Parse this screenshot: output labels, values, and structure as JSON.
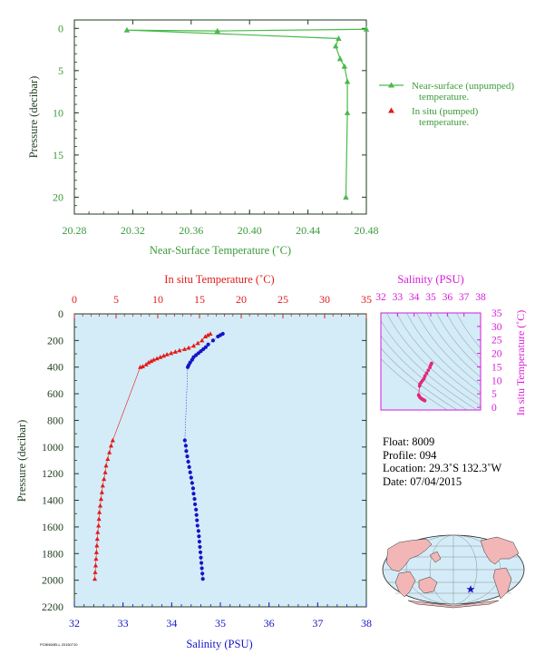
{
  "colors": {
    "green": "#4aba4a",
    "green_text": "#3a9a3a",
    "red": "#e11b1b",
    "blue": "#1414c8",
    "magenta": "#d81ad8",
    "pink": "#e0287a",
    "axis_dark": "#1f3d1f",
    "plot_bg": "#d4ecf7",
    "land": "#f2b6b6",
    "ocean": "#d4ecf7"
  },
  "info": {
    "float": "Float:  8009",
    "profile": "Profile:  094",
    "location": "Location:  29.3˚S  132.3˚W",
    "date": "Date:  07/04/2015"
  },
  "footnote": "PCBN08ELL 20150710",
  "chart_data": [
    {
      "type": "line",
      "id": "near_surface",
      "xlabel": "Near-Surface Temperature (˚C)",
      "ylabel": "Pressure (decibar)",
      "xlim": [
        20.28,
        20.48
      ],
      "ylim": [
        22,
        -1
      ],
      "xticks": [
        "20.28",
        "20.32",
        "20.36",
        "20.40",
        "20.44",
        "20.48"
      ],
      "xtick_values": [
        20.28,
        20.32,
        20.36,
        20.4,
        20.44,
        20.48
      ],
      "yticks": [
        "0",
        "5",
        "10",
        "15",
        "20"
      ],
      "ytick_values": [
        0,
        5,
        10,
        15,
        20
      ],
      "series": [
        {
          "name": "Near-surface (unpumped) temperature.",
          "x": [
            20.48,
            20.378,
            20.316,
            20.461,
            20.459,
            20.462,
            20.465,
            20.467,
            20.467,
            20.466
          ],
          "y": [
            0.1,
            0.3,
            0.2,
            1.2,
            2.1,
            3.6,
            4.5,
            6.3,
            10.0,
            20.0
          ]
        }
      ],
      "legend": [
        {
          "label": "Near-surface (unpumped)",
          "label2": "temperature."
        },
        {
          "label": "In situ (pumped)",
          "label2": "temperature."
        }
      ]
    },
    {
      "type": "scatter",
      "id": "profile",
      "title_top": "In situ Temperature (˚C)",
      "xlabel": "Salinity (PSU)",
      "ylabel": "Pressure (decibar)",
      "temp_lim": [
        0,
        35
      ],
      "sal_lim": [
        32,
        38
      ],
      "ylim": [
        0,
        2200
      ],
      "temp_ticks": [
        "0",
        "5",
        "10",
        "15",
        "20",
        "25",
        "30",
        "35"
      ],
      "temp_tick_values": [
        0,
        5,
        10,
        15,
        20,
        25,
        30,
        35
      ],
      "sal_ticks": [
        "32",
        "33",
        "34",
        "35",
        "36",
        "37",
        "38"
      ],
      "sal_tick_values": [
        32,
        33,
        34,
        35,
        36,
        37,
        38
      ],
      "yticks": [
        "0",
        "200",
        "400",
        "600",
        "800",
        "1000",
        "1200",
        "1400",
        "1600",
        "1800",
        "2000",
        "2200"
      ],
      "ytick_values": [
        0,
        200,
        400,
        600,
        800,
        1000,
        1200,
        1400,
        1600,
        1800,
        2000,
        2200
      ],
      "temperature": {
        "name": "In situ Temperature",
        "pressure": [
          150,
          160,
          170,
          200,
          220,
          240,
          255,
          265,
          275,
          285,
          295,
          305,
          315,
          325,
          335,
          345,
          355,
          365,
          380,
          395,
          400,
          950,
          990,
          1040,
          1090,
          1140,
          1190,
          1240,
          1290,
          1340,
          1390,
          1440,
          1490,
          1540,
          1590,
          1640,
          1690,
          1740,
          1790,
          1840,
          1890,
          1940,
          1990
        ],
        "values": [
          16.3,
          16.0,
          15.7,
          15.3,
          14.8,
          14.3,
          13.7,
          13.2,
          12.6,
          12.1,
          11.6,
          11.1,
          10.7,
          10.3,
          9.9,
          9.5,
          9.2,
          8.9,
          8.6,
          8.2,
          7.9,
          4.6,
          4.4,
          4.2,
          4.0,
          3.8,
          3.7,
          3.55,
          3.4,
          3.3,
          3.2,
          3.1,
          3.0,
          2.95,
          2.9,
          2.8,
          2.75,
          2.7,
          2.65,
          2.6,
          2.55,
          2.5,
          2.45
        ]
      },
      "salinity": {
        "name": "Salinity",
        "pressure": [
          150,
          160,
          170,
          200,
          230,
          250,
          265,
          280,
          295,
          310,
          325,
          345,
          365,
          385,
          400,
          950,
          990,
          1030,
          1070,
          1110,
          1150,
          1190,
          1230,
          1270,
          1310,
          1350,
          1390,
          1430,
          1470,
          1510,
          1550,
          1590,
          1630,
          1670,
          1710,
          1750,
          1790,
          1830,
          1870,
          1910,
          1950,
          1990
        ],
        "values": [
          35.05,
          35.0,
          34.95,
          34.85,
          34.75,
          34.7,
          34.65,
          34.6,
          34.55,
          34.5,
          34.45,
          34.42,
          34.38,
          34.35,
          34.33,
          34.27,
          34.29,
          34.3,
          34.32,
          34.34,
          34.36,
          34.38,
          34.4,
          34.42,
          34.44,
          34.45,
          34.47,
          34.48,
          34.5,
          34.51,
          34.52,
          34.53,
          34.55,
          34.56,
          34.57,
          34.58,
          34.59,
          34.6,
          34.61,
          34.62,
          34.63,
          34.64
        ]
      }
    },
    {
      "type": "scatter",
      "id": "ts_diagram",
      "title_top": "Salinity (PSU)",
      "ylabel": "In situ Temperature (˚C)",
      "sal_lim": [
        32,
        38
      ],
      "temp_lim": [
        -1,
        35
      ],
      "sal_ticks": [
        "32",
        "33",
        "34",
        "35",
        "36",
        "37",
        "38"
      ],
      "sal_tick_values": [
        32,
        33,
        34,
        35,
        36,
        37,
        38
      ],
      "temp_ticks": [
        "0",
        "5",
        "10",
        "15",
        "20",
        "25",
        "30",
        "35"
      ],
      "temp_tick_values": [
        0,
        5,
        10,
        15,
        20,
        25,
        30,
        35
      ],
      "points": {
        "salinity": [
          35.05,
          35.0,
          34.95,
          34.85,
          34.75,
          34.65,
          34.6,
          34.5,
          34.42,
          34.35,
          34.33,
          34.27,
          34.3,
          34.34,
          34.38,
          34.42,
          34.47,
          34.52,
          34.57,
          34.62,
          34.64
        ],
        "temperature": [
          16.3,
          15.7,
          14.8,
          13.7,
          12.6,
          11.6,
          10.7,
          9.9,
          9.2,
          8.6,
          7.9,
          4.6,
          4.2,
          3.8,
          3.55,
          3.3,
          3.1,
          2.9,
          2.75,
          2.6,
          2.45
        ]
      }
    }
  ]
}
